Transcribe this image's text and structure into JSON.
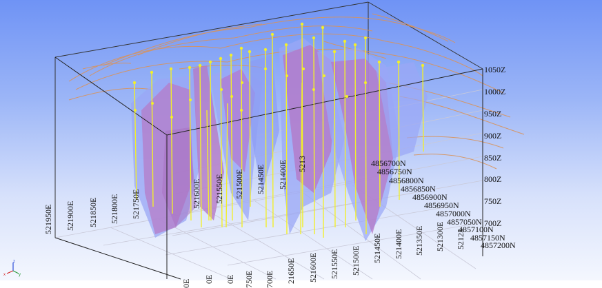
{
  "view": {
    "easting_labels_upper": [
      "521950E",
      "521900E",
      "521850E",
      "521800E",
      "521750E",
      "521600E",
      "521550E",
      "521500E",
      "521450E",
      "521400E",
      "5213"
    ],
    "easting_labels_lower": [
      "521450E",
      "521400E",
      "521350E",
      "521300E",
      "52125"
    ],
    "easting_labels_bottom": [
      "0E",
      "0E",
      "0E",
      "750E",
      "700E",
      "21650E",
      "521600E",
      "521550E",
      "521500E"
    ],
    "northing_labels": [
      "4856700N",
      "4856750N",
      "4856800N",
      "4856850N",
      "4856900N",
      "4856950N",
      "4857000N",
      "4857050N",
      "4857100N",
      "4857150N",
      "4857200N"
    ],
    "elevation_labels": [
      "1050Z",
      "1000Z",
      "950Z",
      "900Z",
      "850Z",
      "800Z",
      "750Z",
      "700Z"
    ],
    "triad_labels": {
      "x": "x",
      "y": "y",
      "z": "z"
    },
    "colors": {
      "sky_top": "#6f93f5",
      "sky_bottom": "#f4f7fe",
      "solid_purple": "#b576c4",
      "solid_blue": "#8b9cf4",
      "drillhole": "#f2ef2a",
      "topo_contour": "#d9935a",
      "frame": "#222222"
    }
  }
}
